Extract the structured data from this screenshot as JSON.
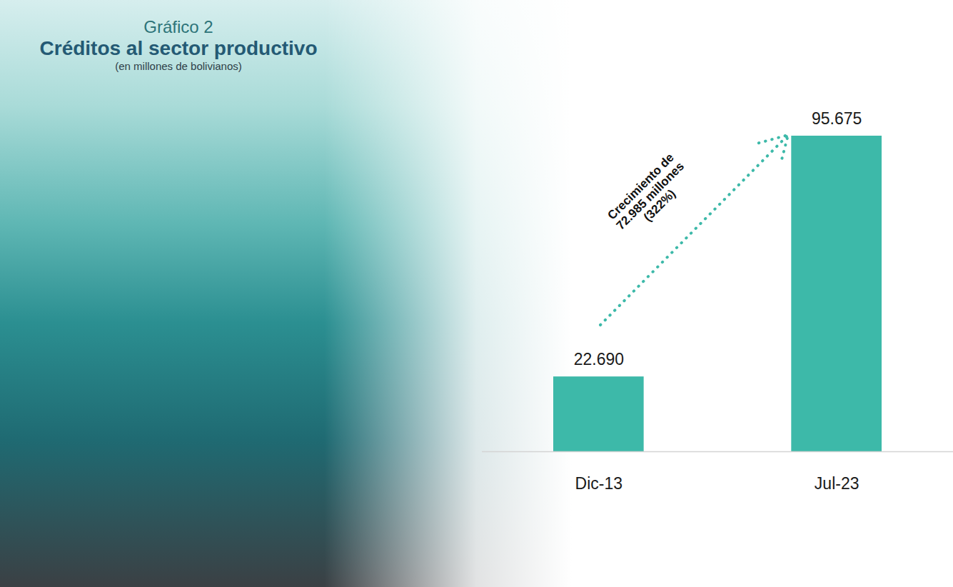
{
  "chart_data": {
    "type": "bar",
    "chart_number": "Gráfico 2",
    "title": "Créditos al sector productivo",
    "subtitle": "(en millones de bolivianos)",
    "categories": [
      "Dic-13",
      "Jul-23"
    ],
    "values": [
      22690,
      95675
    ],
    "value_labels": [
      "22.690",
      "95.675"
    ],
    "color": "#3db9a9",
    "ylim": [
      0,
      95675
    ],
    "yticks": [],
    "grid": false,
    "data_labels": true,
    "tick_labels": "x",
    "annotations": [
      {
        "text": "Crecimiento de\n72.985 millones\n(322%)",
        "from": "Dic-13",
        "to": "Jul-23"
      }
    ]
  }
}
